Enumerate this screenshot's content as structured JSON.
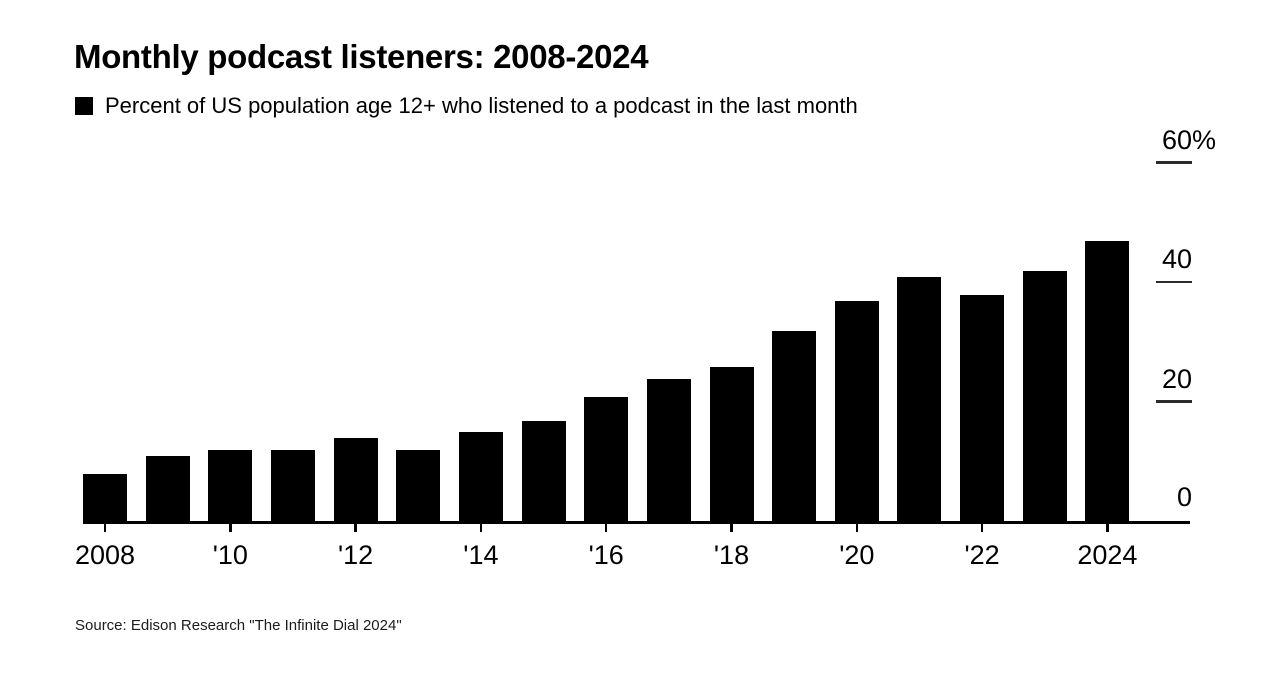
{
  "header": {
    "title": "Monthly podcast listeners: 2008-2024",
    "legend_label": "Percent of US population age 12+ who listened to a podcast in the last month"
  },
  "chart_data": {
    "type": "bar",
    "title": "Monthly podcast listeners: 2008-2024",
    "series_label": "Percent of US population age 12+ who listened to a podcast in the last month",
    "categories": [
      2008,
      2009,
      2010,
      2011,
      2012,
      2013,
      2014,
      2015,
      2016,
      2017,
      2018,
      2019,
      2020,
      2021,
      2022,
      2023,
      2024
    ],
    "values": [
      8,
      11,
      12,
      12,
      14,
      12,
      15,
      17,
      21,
      24,
      26,
      32,
      37,
      41,
      38,
      42,
      47
    ],
    "xlabel": "",
    "ylabel": "",
    "ylim": [
      0,
      60
    ],
    "grid": false,
    "legend_position": "top-left",
    "x_tick_labels": [
      "2008",
      "'10",
      "'12",
      "'14",
      "'16",
      "'18",
      "'20",
      "'22",
      "2024"
    ],
    "y_ticks": [
      {
        "label": "60",
        "suffix": "%",
        "value": 60
      },
      {
        "label": "40",
        "suffix": "",
        "value": 40
      },
      {
        "label": "20",
        "suffix": "",
        "value": 20
      },
      {
        "label": "0",
        "suffix": "",
        "value": 0
      }
    ]
  },
  "source": {
    "text": "Source: Edison Research \"The Infinite Dial 2024\""
  },
  "colors": {
    "background": "#ffffff",
    "bar": "#000000",
    "text": "#000000",
    "axis": "#000000",
    "tick_dash": "#2b2b2b",
    "source_text": "#1c1c1c"
  }
}
